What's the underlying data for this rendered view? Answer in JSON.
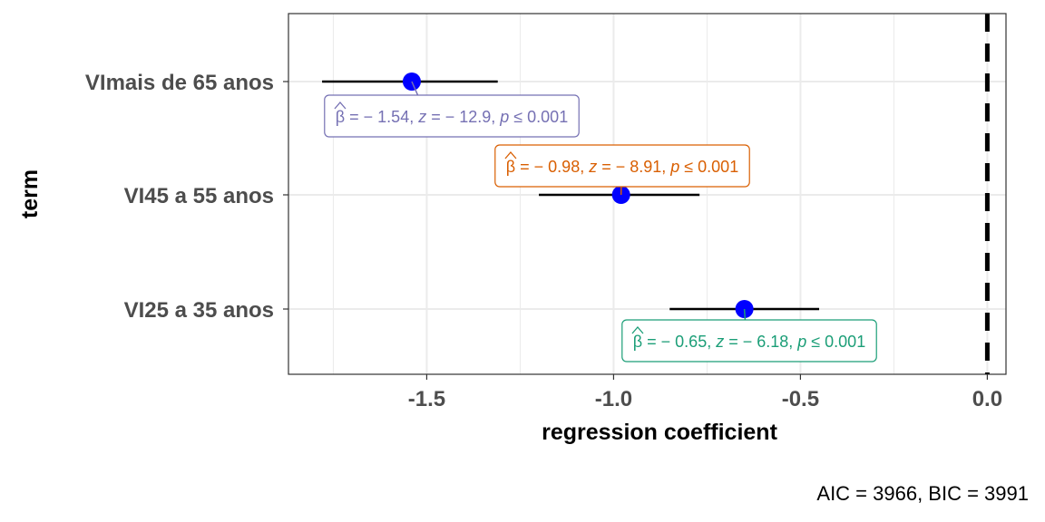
{
  "chart_data": {
    "type": "scatter",
    "xlabel": "regression coefficient",
    "ylabel": "term",
    "xlim": [
      -1.87,
      0.05
    ],
    "x_ticks": [
      -1.5,
      -1.0,
      -0.5,
      0.0
    ],
    "x_tick_labels": [
      "-1.5",
      "-1.0",
      "-0.5",
      "0.0"
    ],
    "reference_line": 0.0,
    "grid": true,
    "terms": [
      {
        "term": "VImais de 65 anos",
        "estimate": -1.54,
        "conf_low": -1.78,
        "conf_high": -1.31,
        "color": "#7570b3",
        "annotation": {
          "beta": "= − 1.54,",
          "z_eq": "= − 12.9,",
          "p_eq": "≤ 0.001"
        }
      },
      {
        "term": "VI45 a 55 anos",
        "estimate": -0.98,
        "conf_low": -1.2,
        "conf_high": -0.77,
        "color": "#d95f02",
        "annotation": {
          "beta": "= − 0.98,",
          "z_eq": "= − 8.91,",
          "p_eq": "≤ 0.001"
        }
      },
      {
        "term": "VI25 a 35 anos",
        "estimate": -0.65,
        "conf_low": -0.85,
        "conf_high": -0.45,
        "color": "#1b9e77",
        "annotation": {
          "beta": "= − 0.65,",
          "z_eq": "= − 6.18,",
          "p_eq": "≤ 0.001"
        }
      }
    ],
    "caption": "AIC = 3966, BIC = 3991",
    "point_color": "#0000ff"
  }
}
